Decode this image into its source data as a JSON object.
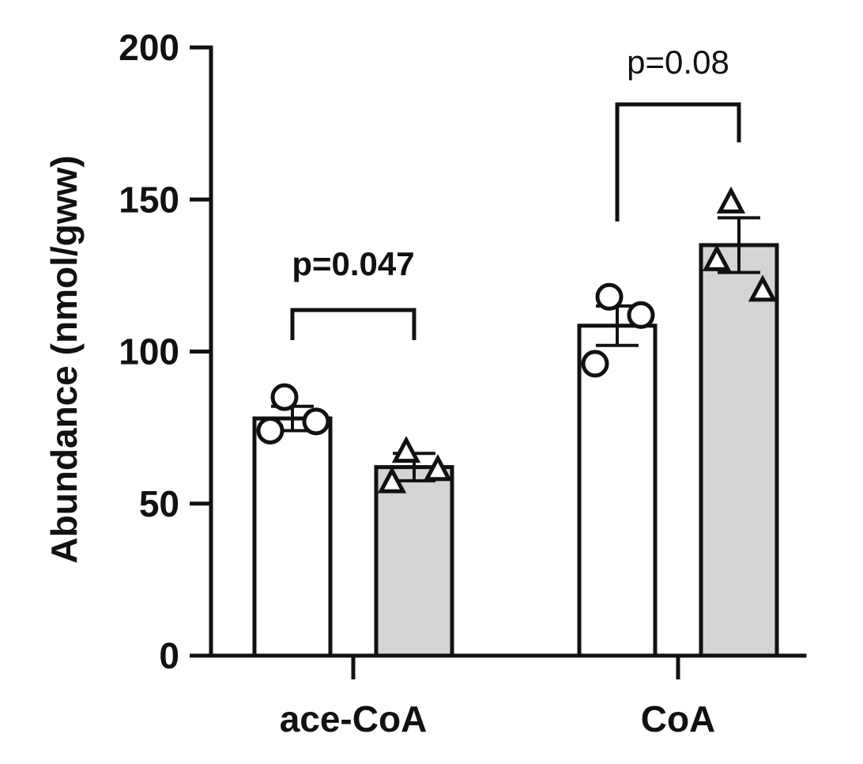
{
  "chart_data": {
    "type": "bar",
    "ylabel": "Abundance (nmol/gww)",
    "xlabel": "",
    "ylim": [
      0,
      200
    ],
    "yticks": [
      0,
      50,
      100,
      150,
      200
    ],
    "categories": [
      "ace-CoA",
      "CoA"
    ],
    "colors": {
      "group1": "#ffffff",
      "group2": "#d4d4d6",
      "stroke": "#111111"
    },
    "series": [
      {
        "values": [
          78,
          108.5
        ],
        "error": [
          4,
          6.5
        ],
        "marker": "circle",
        "points": [
          [
            85,
            74,
            77
          ],
          [
            118,
            96,
            112
          ]
        ]
      },
      {
        "values": [
          62,
          135
        ],
        "error": [
          4.5,
          9
        ],
        "marker": "triangle",
        "points": [
          [
            67,
            57,
            61
          ],
          [
            149,
            130,
            120
          ]
        ]
      }
    ],
    "annotations": [
      {
        "category": "ace-CoA",
        "text": "p=0.047",
        "bold": true
      },
      {
        "category": "CoA",
        "text": "p=0.08",
        "bold": false
      }
    ]
  }
}
